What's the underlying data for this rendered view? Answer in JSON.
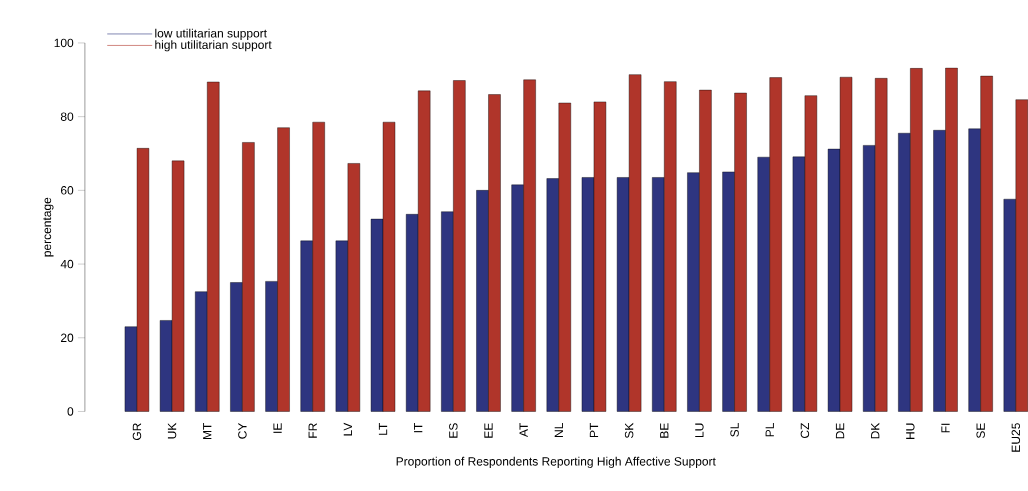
{
  "chart_data": {
    "type": "bar",
    "xlabel": "Proportion of Respondents Reporting High Affective Support",
    "ylabel": "percentage",
    "categories": [
      "GR",
      "UK",
      "MT",
      "CY",
      "IE",
      "FR",
      "LV",
      "LT",
      "IT",
      "ES",
      "EE",
      "AT",
      "NL",
      "PT",
      "SK",
      "BE",
      "LU",
      "SL",
      "PL",
      "CZ",
      "DE",
      "DK",
      "HU",
      "FI",
      "SE",
      "EU25"
    ],
    "series": [
      {
        "name": "low utilitarian support",
        "color": "#2e3580",
        "values": [
          23,
          24.7,
          32.5,
          35,
          35.3,
          46.3,
          46.3,
          52.2,
          53.5,
          54.2,
          60,
          61.5,
          63.2,
          63.5,
          63.5,
          63.5,
          64.8,
          65,
          69,
          69.1,
          71.2,
          72.2,
          75.5,
          76.3,
          76.7,
          57.6
        ]
      },
      {
        "name": "high utilitarian support",
        "color": "#b0352a",
        "values": [
          71.4,
          68,
          89.4,
          73,
          77,
          78.5,
          67.3,
          78.5,
          87,
          89.8,
          86,
          90,
          83.7,
          84,
          91.4,
          89.5,
          87.2,
          86.4,
          90.6,
          85.7,
          90.7,
          90.4,
          93.1,
          93.2,
          91,
          84.6
        ]
      }
    ],
    "ylim": [
      0,
      100
    ],
    "yticks": [
      0,
      20,
      40,
      60,
      80,
      100
    ],
    "grid": false,
    "legend": "top left"
  }
}
